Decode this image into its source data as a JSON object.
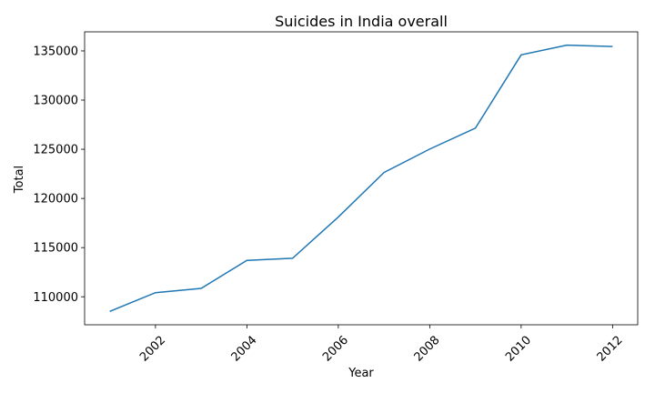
{
  "chart_data": {
    "type": "line",
    "title": "Suicides in India overall",
    "xlabel": "Year",
    "ylabel": "Total",
    "x": [
      2001,
      2002,
      2003,
      2004,
      2005,
      2006,
      2007,
      2008,
      2009,
      2010,
      2011,
      2012
    ],
    "series": [
      {
        "values": [
          108506,
          110417,
          110851,
          113697,
          113914,
          118112,
          122637,
          125017,
          127151,
          134599,
          135585,
          135445
        ],
        "color": "#1f77b4"
      }
    ],
    "xticks": [
      "2002",
      "2004",
      "2006",
      "2008",
      "2010",
      "2012"
    ],
    "yticks": [
      "110000",
      "115000",
      "120000",
      "125000",
      "130000",
      "135000"
    ],
    "xlim": [
      2000.45,
      2012.55
    ],
    "ylim": [
      107152,
      136940
    ],
    "grid": false,
    "legend": "none"
  }
}
